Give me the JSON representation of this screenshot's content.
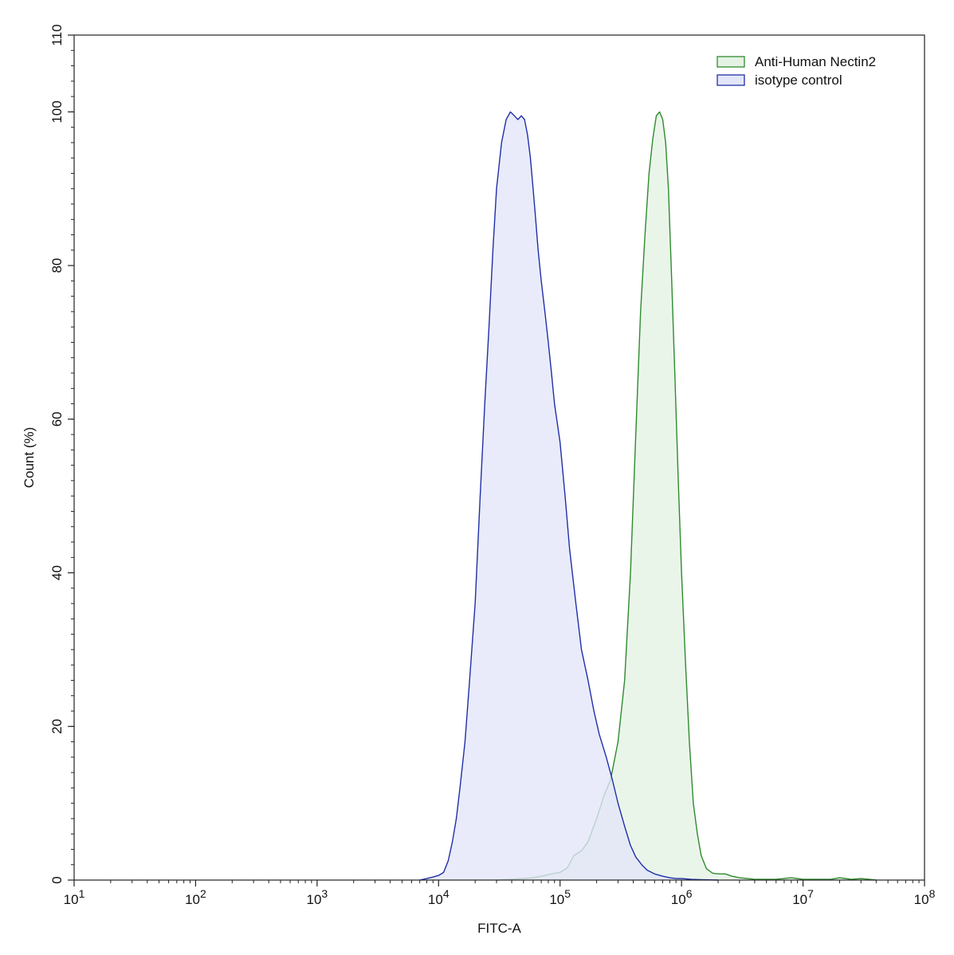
{
  "chart_data": {
    "type": "area",
    "title": "",
    "xlabel": "FITC-A",
    "ylabel": "Count  (%)",
    "x_scale": "log",
    "xlim": [
      10,
      100000000
    ],
    "ylim": [
      0,
      110
    ],
    "x_ticks": [
      {
        "value": 10,
        "base": "10",
        "exp": "1"
      },
      {
        "value": 100,
        "base": "10",
        "exp": "2"
      },
      {
        "value": 1000,
        "base": "10",
        "exp": "3"
      },
      {
        "value": 10000,
        "base": "10",
        "exp": "4"
      },
      {
        "value": 100000,
        "base": "10",
        "exp": "5"
      },
      {
        "value": 1000000,
        "base": "10",
        "exp": "6"
      },
      {
        "value": 10000000,
        "base": "10",
        "exp": "7"
      },
      {
        "value": 100000000,
        "base": "10",
        "exp": "8"
      }
    ],
    "y_ticks": [
      0,
      20,
      40,
      60,
      80,
      100,
      110
    ],
    "y_tick_labels": [
      "0",
      "20",
      "40",
      "60",
      "80",
      "100",
      "110"
    ],
    "grid": false,
    "legend_position": "top-right",
    "series": [
      {
        "name": "Anti-Human Nectin2",
        "stroke": "#2e8b2e",
        "fill": "#e4f2e4",
        "x": [
          30000,
          40000,
          50000,
          60000,
          70000,
          85000,
          100000,
          115000,
          130000,
          150000,
          170000,
          200000,
          230000,
          260000,
          300000,
          340000,
          380000,
          420000,
          460000,
          500000,
          540000,
          580000,
          620000,
          660000,
          700000,
          740000,
          780000,
          830000,
          880000,
          940000,
          1000000,
          1080000,
          1160000,
          1250000,
          1350000,
          1450000,
          1600000,
          1800000,
          2000000,
          2300000,
          2600000,
          3000000,
          3500000,
          4000000,
          5000000,
          6000000,
          8000000,
          10000000,
          13000000,
          17000000,
          20000000,
          25000000,
          30000000,
          35000000,
          40000000
        ],
        "y": [
          0,
          0.1,
          0.2,
          0.3,
          0.5,
          0.8,
          1.0,
          1.6,
          3.2,
          3.8,
          5.0,
          8.0,
          11.0,
          13.0,
          18.0,
          26.0,
          40.0,
          58.0,
          74.0,
          84.0,
          92.0,
          96.5,
          99.5,
          100.0,
          99.0,
          96.0,
          90.0,
          78.0,
          66.0,
          52.0,
          40.0,
          28.0,
          18.0,
          10.0,
          6.0,
          3.2,
          1.5,
          0.9,
          0.8,
          0.8,
          0.5,
          0.3,
          0.2,
          0.1,
          0.1,
          0.1,
          0.3,
          0.1,
          0.1,
          0.1,
          0.3,
          0.1,
          0.2,
          0.1,
          0
        ]
      },
      {
        "name": "isotype control",
        "stroke": "#1f2fa8",
        "fill": "#e3e6f9",
        "x": [
          7000,
          8000,
          9000,
          10000,
          11000,
          12000,
          13000,
          14000,
          15000,
          16500,
          18000,
          20000,
          22000,
          24000,
          26000,
          28000,
          30000,
          33000,
          36000,
          39000,
          42000,
          45000,
          48000,
          51000,
          54000,
          57000,
          60000,
          63000,
          66000,
          70000,
          75000,
          80000,
          85000,
          90000,
          100000,
          110000,
          120000,
          135000,
          150000,
          170000,
          190000,
          210000,
          240000,
          270000,
          300000,
          340000,
          380000,
          420000,
          470000,
          520000,
          600000,
          700000,
          800000,
          900000,
          1000000,
          1200000,
          1500000,
          2000000
        ],
        "y": [
          0,
          0.2,
          0.4,
          0.6,
          1.0,
          2.5,
          5.0,
          8.0,
          12.0,
          18.0,
          26.0,
          36.0,
          50.0,
          62.0,
          72.0,
          82.0,
          90.0,
          96.0,
          99.0,
          100.0,
          99.5,
          99.0,
          99.5,
          99.0,
          97.0,
          94.0,
          90.0,
          86.0,
          82.0,
          78.0,
          74.0,
          70.0,
          66.0,
          62.0,
          57.0,
          50.0,
          43.0,
          36.0,
          30.0,
          26.0,
          22.0,
          19.0,
          16.0,
          13.0,
          10.0,
          7.0,
          4.5,
          3.0,
          2.0,
          1.3,
          0.8,
          0.5,
          0.3,
          0.2,
          0.2,
          0.1,
          0.05,
          0
        ]
      }
    ]
  }
}
